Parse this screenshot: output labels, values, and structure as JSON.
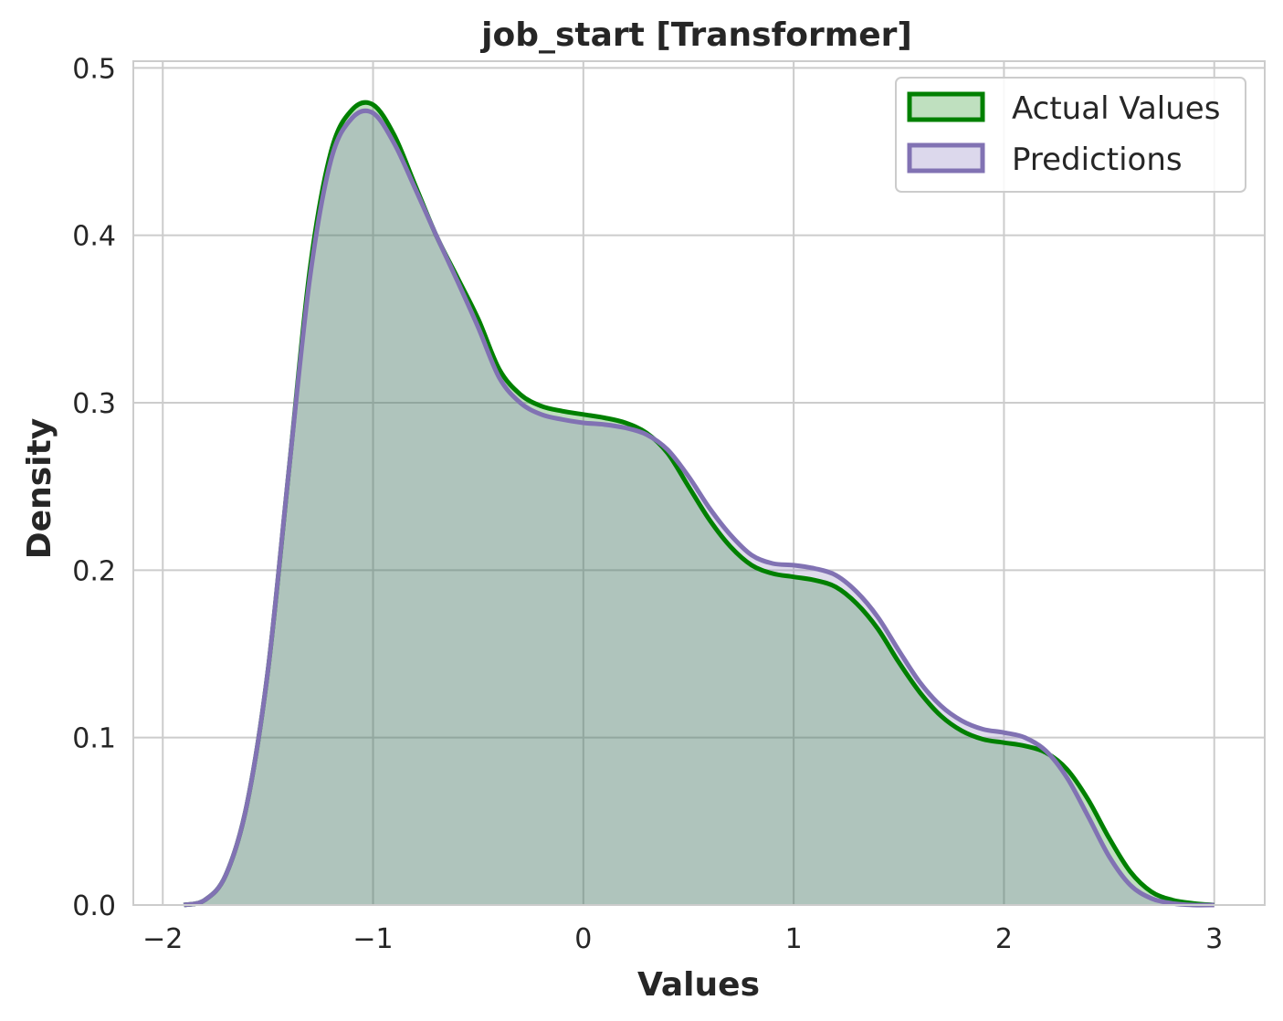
{
  "chart_data": {
    "type": "area",
    "title": "job_start [Transformer]",
    "xlabel": "Values",
    "ylabel": "Density",
    "xlim": [
      -2.14,
      3.24
    ],
    "ylim": [
      0,
      0.504
    ],
    "xticks": [
      -2,
      -1,
      0,
      1,
      2,
      3
    ],
    "xtick_labels": [
      "−2",
      "−1",
      "0",
      "1",
      "2",
      "3"
    ],
    "yticks": [
      0.0,
      0.1,
      0.2,
      0.3,
      0.4,
      0.5
    ],
    "ytick_labels": [
      "0.0",
      "0.1",
      "0.2",
      "0.3",
      "0.4",
      "0.5"
    ],
    "grid": true,
    "legend_position": "top-right",
    "series": [
      {
        "name": "Actual Values",
        "color": "#008000",
        "fill": "#bfe0bf",
        "x": [
          -1.9,
          -1.8,
          -1.7,
          -1.6,
          -1.5,
          -1.4,
          -1.3,
          -1.2,
          -1.1,
          -1.0,
          -0.9,
          -0.8,
          -0.7,
          -0.6,
          -0.5,
          -0.4,
          -0.3,
          -0.2,
          -0.1,
          0.0,
          0.1,
          0.2,
          0.3,
          0.4,
          0.5,
          0.6,
          0.7,
          0.8,
          0.9,
          1.0,
          1.1,
          1.2,
          1.3,
          1.4,
          1.5,
          1.6,
          1.7,
          1.8,
          1.9,
          2.0,
          2.1,
          2.2,
          2.3,
          2.4,
          2.5,
          2.6,
          2.7,
          2.8,
          2.9,
          3.0
        ],
        "y": [
          0.0,
          0.003,
          0.018,
          0.06,
          0.14,
          0.26,
          0.38,
          0.45,
          0.475,
          0.478,
          0.46,
          0.43,
          0.4,
          0.375,
          0.35,
          0.32,
          0.305,
          0.298,
          0.295,
          0.293,
          0.291,
          0.288,
          0.282,
          0.27,
          0.25,
          0.23,
          0.214,
          0.203,
          0.198,
          0.196,
          0.194,
          0.19,
          0.18,
          0.165,
          0.145,
          0.127,
          0.113,
          0.104,
          0.099,
          0.097,
          0.095,
          0.091,
          0.081,
          0.063,
          0.04,
          0.02,
          0.008,
          0.003,
          0.001,
          0.0
        ]
      },
      {
        "name": "Predictions",
        "color": "#8172b3",
        "fill": "#dcd8ec",
        "x": [
          -1.9,
          -1.8,
          -1.7,
          -1.6,
          -1.5,
          -1.4,
          -1.3,
          -1.2,
          -1.1,
          -1.0,
          -0.9,
          -0.8,
          -0.7,
          -0.6,
          -0.5,
          -0.4,
          -0.3,
          -0.2,
          -0.1,
          0.0,
          0.1,
          0.2,
          0.3,
          0.4,
          0.5,
          0.6,
          0.7,
          0.8,
          0.9,
          1.0,
          1.1,
          1.2,
          1.3,
          1.4,
          1.5,
          1.6,
          1.7,
          1.8,
          1.9,
          2.0,
          2.1,
          2.2,
          2.3,
          2.4,
          2.5,
          2.6,
          2.7,
          2.8,
          2.9,
          3.0
        ],
        "y": [
          0.0,
          0.003,
          0.018,
          0.06,
          0.14,
          0.26,
          0.375,
          0.445,
          0.47,
          0.473,
          0.455,
          0.428,
          0.4,
          0.373,
          0.345,
          0.315,
          0.3,
          0.293,
          0.29,
          0.288,
          0.287,
          0.285,
          0.281,
          0.272,
          0.256,
          0.237,
          0.221,
          0.209,
          0.204,
          0.203,
          0.201,
          0.197,
          0.187,
          0.172,
          0.152,
          0.133,
          0.119,
          0.11,
          0.105,
          0.103,
          0.1,
          0.092,
          0.076,
          0.053,
          0.029,
          0.012,
          0.004,
          0.001,
          0.0,
          0.0
        ]
      }
    ]
  }
}
